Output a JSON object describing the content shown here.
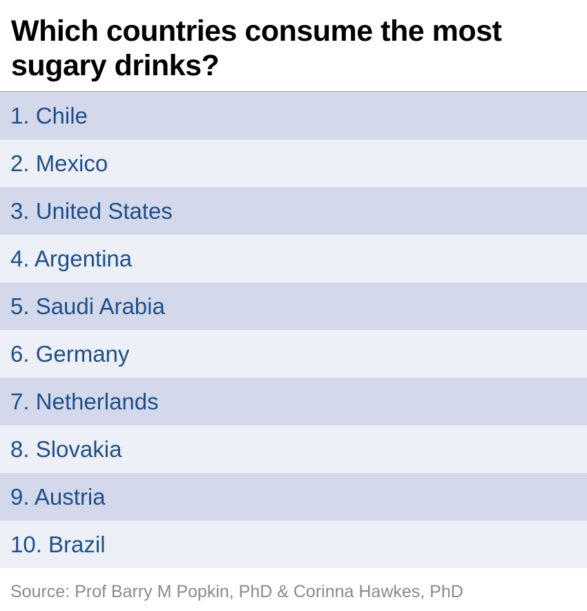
{
  "header": {
    "title": "Which countries consume the most sugary drinks?"
  },
  "list": {
    "items": [
      "1. Chile",
      "2. Mexico",
      "3. United States",
      "4. Argentina",
      "5. Saudi Arabia",
      "6. Germany",
      "7. Netherlands",
      "8. Slovakia",
      "9. Austria",
      "10. Brazil"
    ]
  },
  "footer": {
    "source": "Source: Prof Barry M Popkin, PhD & Corinna Hawkes, PhD"
  }
}
